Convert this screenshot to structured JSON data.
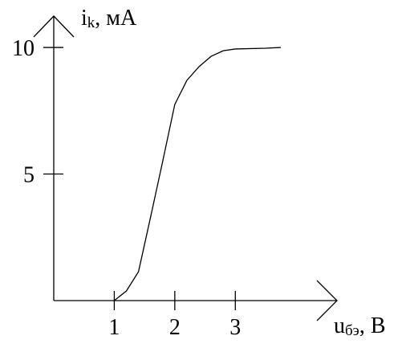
{
  "chart_data": {
    "type": "line",
    "y_label": {
      "symbol": "i",
      "subscript": "k",
      "unit": ", мА"
    },
    "x_label": {
      "symbol": "u",
      "subscript": "бэ",
      "unit": ", В"
    },
    "x": [
      1,
      1.2,
      1.4,
      1.6,
      1.8,
      2.0,
      2.2,
      2.4,
      2.6,
      2.8,
      3.0,
      3.5,
      3.75
    ],
    "values": [
      0,
      0.38,
      1.14,
      3.3,
      5.5,
      7.75,
      8.7,
      9.24,
      9.65,
      9.87,
      9.94,
      9.97,
      10
    ],
    "color": "#000000",
    "xlim": [
      0,
      4.68
    ],
    "ylim": [
      0,
      11.24
    ],
    "xticks": [
      1,
      2,
      3
    ],
    "yticks": [
      5,
      10
    ]
  }
}
